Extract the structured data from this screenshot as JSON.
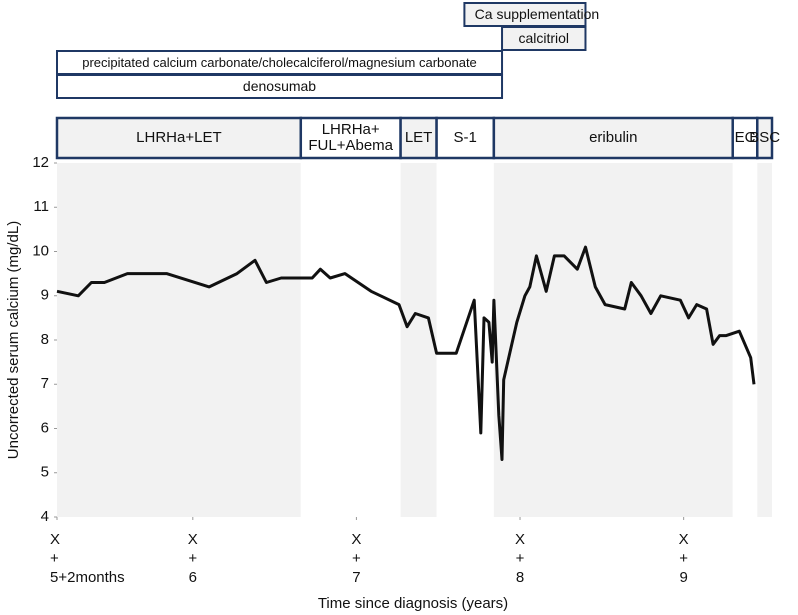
{
  "chart_data": {
    "type": "line",
    "x_label": "Time since diagnosis (years)",
    "y_label": "Uncorrected serum calcium (mg/dL)",
    "xlim": [
      5.17,
      9.54
    ],
    "ylim": [
      4,
      12
    ],
    "yticks": [
      4,
      5,
      6,
      7,
      8,
      9,
      10,
      11,
      12
    ],
    "xticks": [
      {
        "value": 5.17,
        "label": "X\n+\n5+2months"
      },
      {
        "value": 6,
        "label": "X\n+\n6"
      },
      {
        "value": 7,
        "label": "X\n+\n7"
      },
      {
        "value": 8,
        "label": "X\n+\n8"
      },
      {
        "value": 9,
        "label": "X\n+\n9"
      }
    ],
    "color": "#111111",
    "x": [
      5.17,
      5.3,
      5.38,
      5.46,
      5.6,
      5.84,
      6.1,
      6.27,
      6.38,
      6.45,
      6.54,
      6.73,
      6.78,
      6.84,
      6.93,
      7.09,
      7.26,
      7.31,
      7.36,
      7.44,
      7.49,
      7.61,
      7.72,
      7.76,
      7.78,
      7.81,
      7.83,
      7.84,
      7.87,
      7.89,
      7.9,
      7.98,
      8.03,
      8.06,
      8.1,
      8.16,
      8.21,
      8.27,
      8.35,
      8.4,
      8.46,
      8.52,
      8.64,
      8.68,
      8.74,
      8.8,
      8.86,
      8.98,
      9.03,
      9.08,
      9.14,
      9.18,
      9.22,
      9.26,
      9.34,
      9.41,
      9.43
    ],
    "values": [
      9.1,
      9.0,
      9.3,
      9.3,
      9.5,
      9.5,
      9.2,
      9.5,
      9.8,
      9.3,
      9.4,
      9.4,
      9.6,
      9.4,
      9.5,
      9.1,
      8.8,
      8.3,
      8.6,
      8.5,
      7.7,
      7.7,
      8.9,
      5.9,
      8.5,
      8.4,
      7.5,
      8.9,
      6.3,
      5.3,
      7.1,
      8.4,
      9.0,
      9.2,
      9.9,
      9.1,
      9.9,
      9.9,
      9.6,
      10.1,
      9.2,
      8.8,
      8.7,
      9.3,
      9.0,
      8.6,
      9.0,
      8.9,
      8.5,
      8.8,
      8.7,
      7.9,
      8.1,
      8.1,
      8.2,
      7.6,
      7.0
    ],
    "regimens": [
      {
        "label": "LHRHa+LET",
        "start": 5.17,
        "end": 6.66,
        "color": "#f2f2f2"
      },
      {
        "label": "LHRHa+\nFUL+Abema",
        "start": 6.66,
        "end": 7.27,
        "color": "#ffffff"
      },
      {
        "label": "LET",
        "start": 7.27,
        "end": 7.49,
        "color": "#f2f2f2"
      },
      {
        "label": "S-1",
        "start": 7.49,
        "end": 7.84,
        "color": "#ffffff"
      },
      {
        "label": "eribulin",
        "start": 7.84,
        "end": 9.3,
        "color": "#f2f2f2"
      },
      {
        "label": "EC",
        "start": 9.3,
        "end": 9.45,
        "color": "#ffffff"
      },
      {
        "label": "BSC",
        "start": 9.45,
        "end": 9.54,
        "color": "#f2f2f2"
      }
    ],
    "supportive": [
      {
        "label": "denosumab",
        "start": 5.17,
        "end": 7.89,
        "color": "#ffffff"
      },
      {
        "label": "precipitated calcium carbonate/cholecalciferol/magnesium carbonate",
        "start": 5.17,
        "end": 7.89,
        "color": "#ffffff"
      },
      {
        "label": "calcitriol",
        "start": 7.89,
        "end": 8.4,
        "color": "#f2f2f2"
      },
      {
        "label": "Ca supplementation",
        "start": 7.66,
        "end": 8.4,
        "color": "#f2f2f2"
      }
    ],
    "bar_border_color": "#1f3864"
  }
}
